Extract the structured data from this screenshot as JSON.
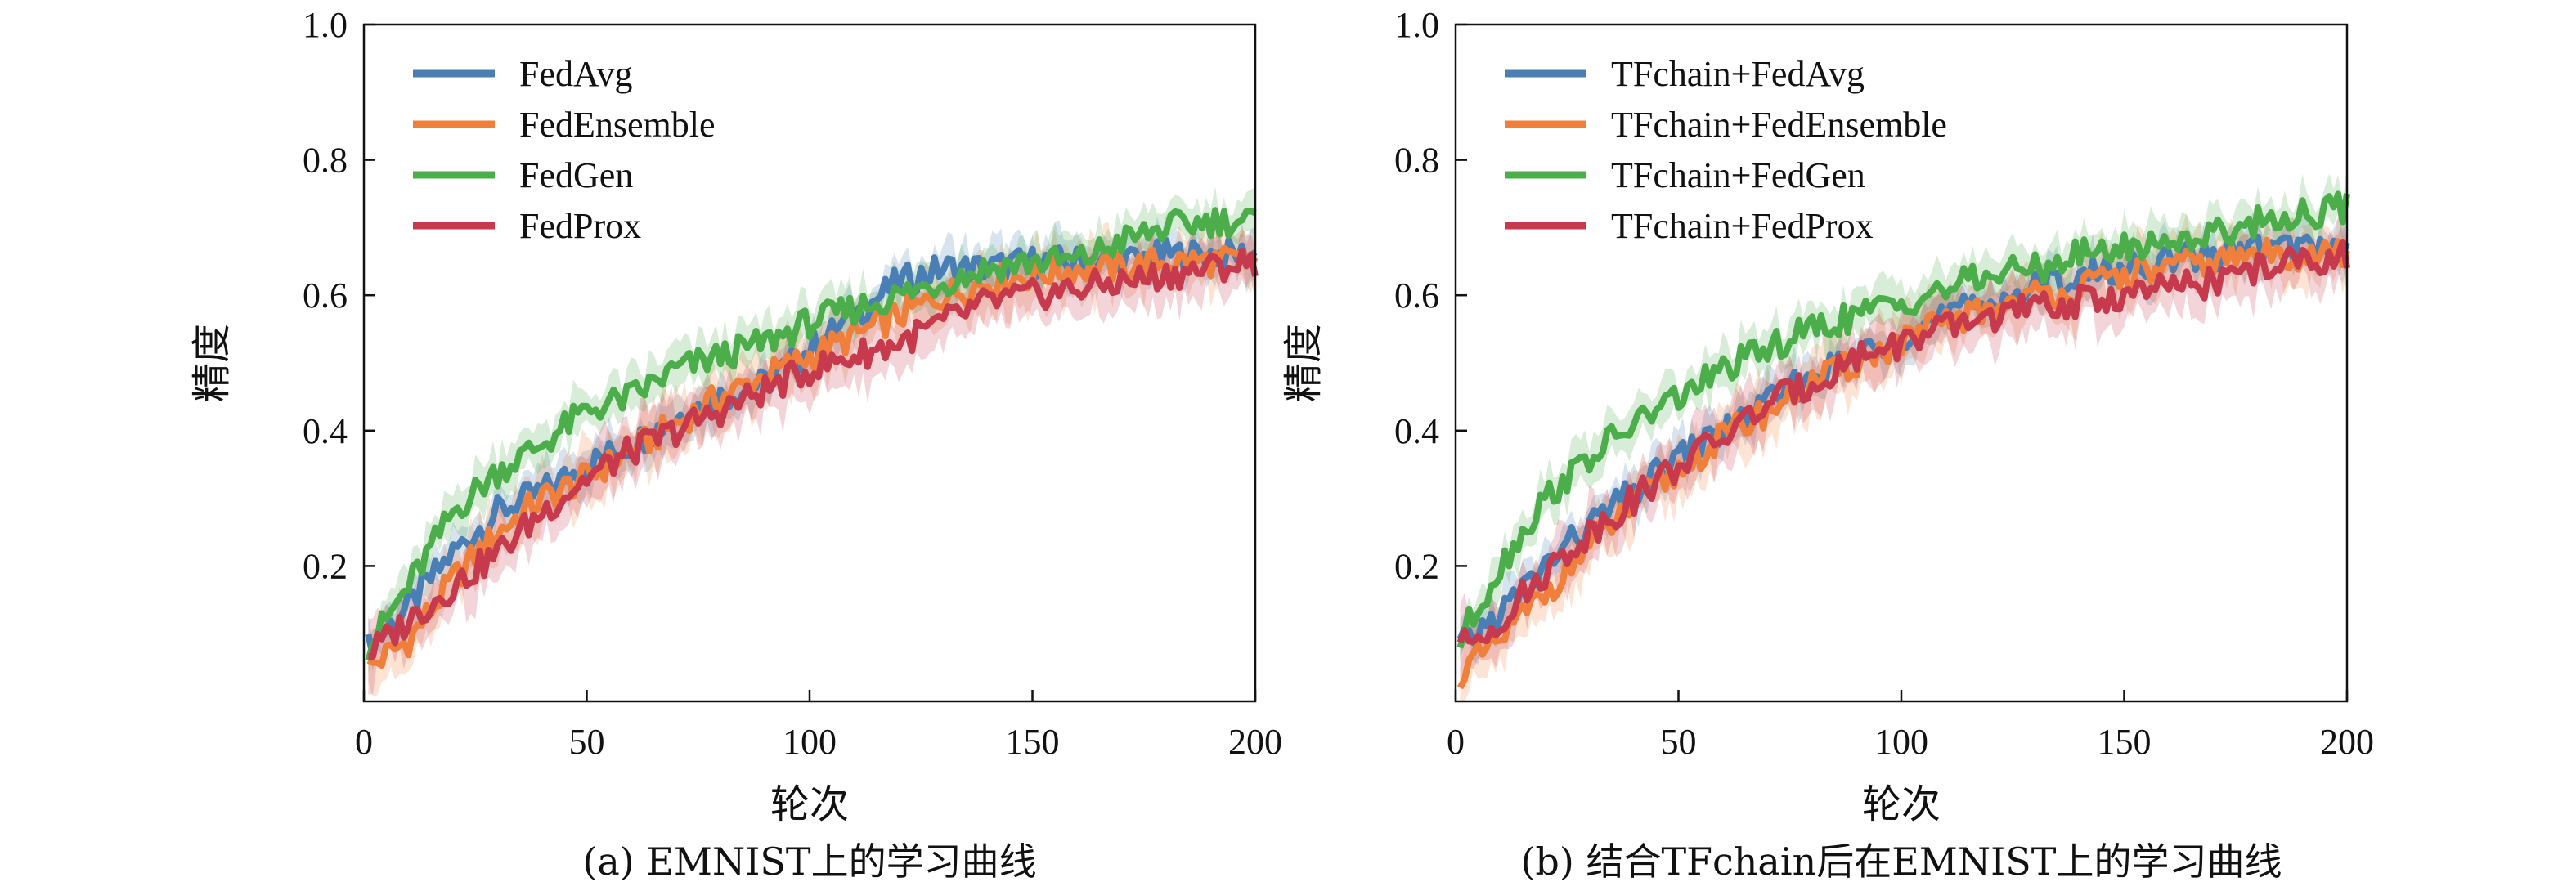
{
  "chart_data": [
    {
      "type": "line",
      "caption": "(a) EMNIST上的学习曲线",
      "xlabel": "轮次",
      "ylabel": "精度",
      "xlim": [
        0,
        200
      ],
      "ylim": [
        0,
        1.0
      ],
      "xticks": [
        "0",
        "50",
        "100",
        "150",
        "200"
      ],
      "yticks": [
        "0.2",
        "0.4",
        "0.6",
        "0.8",
        "1.0"
      ],
      "legend_position": "top-left",
      "series": [
        {
          "name": "FedAvg",
          "color": "#4a7fb5",
          "x": [
            1,
            10,
            20,
            30,
            40,
            50,
            60,
            70,
            80,
            90,
            100,
            110,
            120,
            130,
            140,
            150,
            160,
            170,
            180,
            190,
            200
          ],
          "y": [
            0.08,
            0.14,
            0.22,
            0.28,
            0.31,
            0.35,
            0.38,
            0.42,
            0.45,
            0.47,
            0.52,
            0.57,
            0.62,
            0.64,
            0.64,
            0.65,
            0.65,
            0.65,
            0.66,
            0.66,
            0.66
          ],
          "band": 0.03
        },
        {
          "name": "FedEnsemble",
          "color": "#f07f3c",
          "x": [
            1,
            10,
            20,
            30,
            40,
            50,
            60,
            70,
            80,
            90,
            100,
            110,
            120,
            130,
            140,
            150,
            160,
            170,
            180,
            190,
            200
          ],
          "y": [
            0.05,
            0.09,
            0.18,
            0.25,
            0.3,
            0.33,
            0.37,
            0.41,
            0.45,
            0.48,
            0.51,
            0.54,
            0.57,
            0.6,
            0.62,
            0.63,
            0.64,
            0.64,
            0.65,
            0.65,
            0.65
          ],
          "band": 0.04
        },
        {
          "name": "FedGen",
          "color": "#4bae4b",
          "x": [
            1,
            10,
            20,
            30,
            40,
            50,
            60,
            70,
            80,
            90,
            100,
            110,
            120,
            130,
            140,
            150,
            160,
            170,
            180,
            190,
            200
          ],
          "y": [
            0.08,
            0.17,
            0.28,
            0.34,
            0.38,
            0.43,
            0.45,
            0.49,
            0.51,
            0.53,
            0.56,
            0.58,
            0.6,
            0.62,
            0.64,
            0.65,
            0.65,
            0.68,
            0.7,
            0.71,
            0.71
          ],
          "band": 0.03
        },
        {
          "name": "FedProx",
          "color": "#c73a4e",
          "x": [
            1,
            10,
            20,
            30,
            40,
            50,
            60,
            70,
            80,
            90,
            100,
            110,
            120,
            130,
            140,
            150,
            160,
            170,
            180,
            190,
            200
          ],
          "y": [
            0.07,
            0.12,
            0.17,
            0.22,
            0.28,
            0.33,
            0.37,
            0.4,
            0.43,
            0.46,
            0.49,
            0.51,
            0.53,
            0.56,
            0.59,
            0.6,
            0.61,
            0.62,
            0.63,
            0.64,
            0.65
          ],
          "band": 0.04
        }
      ]
    },
    {
      "type": "line",
      "caption": "(b) 结合TFchain后在EMNIST上的学习曲线",
      "xlabel": "轮次",
      "ylabel": "精度",
      "xlim": [
        0,
        200
      ],
      "ylim": [
        0,
        1.0
      ],
      "xticks": [
        "0",
        "50",
        "100",
        "150",
        "200"
      ],
      "yticks": [
        "0.2",
        "0.4",
        "0.6",
        "0.8",
        "1.0"
      ],
      "legend_position": "top-left",
      "series": [
        {
          "name": "TFchain+FedAvg",
          "color": "#4a7fb5",
          "x": [
            1,
            10,
            20,
            30,
            40,
            50,
            60,
            70,
            80,
            90,
            100,
            110,
            120,
            130,
            140,
            150,
            160,
            170,
            180,
            190,
            200
          ],
          "y": [
            0.08,
            0.13,
            0.2,
            0.26,
            0.31,
            0.36,
            0.4,
            0.44,
            0.48,
            0.51,
            0.54,
            0.57,
            0.59,
            0.61,
            0.63,
            0.64,
            0.65,
            0.66,
            0.67,
            0.67,
            0.67
          ],
          "band": 0.03
        },
        {
          "name": "TFchain+FedEnsemble",
          "color": "#f07f3c",
          "x": [
            1,
            10,
            20,
            30,
            40,
            50,
            60,
            70,
            80,
            90,
            100,
            110,
            120,
            130,
            140,
            150,
            160,
            170,
            180,
            190,
            200
          ],
          "y": [
            0.04,
            0.09,
            0.16,
            0.23,
            0.29,
            0.34,
            0.39,
            0.43,
            0.47,
            0.5,
            0.53,
            0.56,
            0.58,
            0.6,
            0.61,
            0.63,
            0.64,
            0.65,
            0.66,
            0.66,
            0.66
          ],
          "band": 0.04
        },
        {
          "name": "TFchain+FedGen",
          "color": "#4bae4b",
          "x": [
            1,
            10,
            20,
            30,
            40,
            50,
            60,
            70,
            80,
            90,
            100,
            110,
            120,
            130,
            140,
            150,
            160,
            170,
            180,
            190,
            200
          ],
          "y": [
            0.09,
            0.2,
            0.3,
            0.36,
            0.41,
            0.45,
            0.49,
            0.52,
            0.55,
            0.57,
            0.59,
            0.61,
            0.63,
            0.64,
            0.66,
            0.67,
            0.68,
            0.69,
            0.71,
            0.72,
            0.73
          ],
          "band": 0.03
        },
        {
          "name": "TFchain+FedProx",
          "color": "#c73a4e",
          "x": [
            1,
            10,
            20,
            30,
            40,
            50,
            60,
            70,
            80,
            90,
            100,
            110,
            120,
            130,
            140,
            150,
            160,
            170,
            180,
            190,
            200
          ],
          "y": [
            0.08,
            0.12,
            0.19,
            0.25,
            0.3,
            0.35,
            0.39,
            0.44,
            0.47,
            0.51,
            0.53,
            0.55,
            0.57,
            0.58,
            0.59,
            0.6,
            0.61,
            0.62,
            0.64,
            0.65,
            0.66
          ],
          "band": 0.04
        }
      ]
    }
  ]
}
